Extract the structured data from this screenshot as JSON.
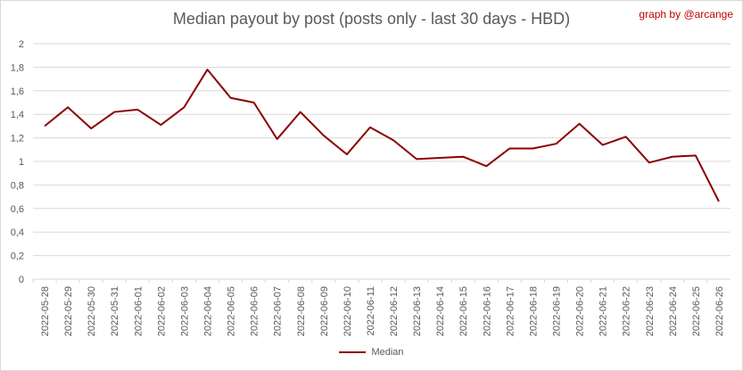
{
  "chart_data": {
    "type": "line",
    "title": "Median payout by post (posts only - last 30 days - HBD)",
    "credit": "graph by @arcange",
    "xlabel": "",
    "ylabel": "",
    "ylim": [
      0,
      2
    ],
    "yticks": [
      "0",
      "0,2",
      "0,4",
      "0,6",
      "0,8",
      "1",
      "1,2",
      "1,4",
      "1,6",
      "1,8",
      "2"
    ],
    "grid": true,
    "legend_position": "bottom",
    "categories": [
      "2022-05-28",
      "2022-05-29",
      "2022-05-30",
      "2022-05-31",
      "2022-06-01",
      "2022-06-02",
      "2022-06-03",
      "2022-06-04",
      "2022-06-05",
      "2022-06-06",
      "2022-06-07",
      "2022-06-08",
      "2022-06-09",
      "2022-06-10",
      "2022-06-11",
      "2022-06-12",
      "2022-06-13",
      "2022-06-14",
      "2022-06-15",
      "2022-06-16",
      "2022-06-17",
      "2022-06-18",
      "2022-06-19",
      "2022-06-20",
      "2022-06-21",
      "2022-06-22",
      "2022-06-23",
      "2022-06-24",
      "2022-06-25",
      "2022-06-26"
    ],
    "series": [
      {
        "name": "Median",
        "color": "#8b0000",
        "values": [
          1.3,
          1.46,
          1.28,
          1.42,
          1.44,
          1.31,
          1.46,
          1.78,
          1.54,
          1.5,
          1.19,
          1.42,
          1.22,
          1.06,
          1.29,
          1.18,
          1.02,
          1.03,
          1.04,
          0.96,
          1.11,
          1.11,
          1.15,
          1.32,
          1.14,
          1.21,
          0.99,
          1.04,
          1.05,
          0.66
        ]
      }
    ]
  }
}
